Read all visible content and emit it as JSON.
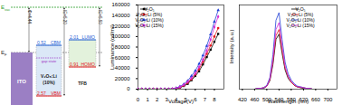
{
  "diagram": {
    "vacuum": {
      "text": "E",
      "subscript": "vac"
    },
    "fermi": {
      "text": "E",
      "subscript": "F"
    },
    "arrows": [
      "Φ=4.44",
      "IE=5.20",
      "IE=5.50"
    ],
    "layers": [
      {
        "name": [
          "ITO"
        ]
      },
      {
        "name": [
          "V₂O₅:Li",
          "(10%)"
        ],
        "levels": [
          {
            "name": "CBM",
            "value": "0.52"
          },
          {
            "name": "gap state"
          },
          {
            "name": "VBM",
            "value": "2.57"
          }
        ]
      },
      {
        "name": [
          "TFB"
        ],
        "levels": [
          {
            "name": "LUMO",
            "value": "2.01"
          },
          {
            "name": "HOMO",
            "value": "0.91"
          }
        ]
      }
    ]
  },
  "chart_data": [
    {
      "type": "line",
      "x_label": "Voltage(V)",
      "y_label": "Luminance (cd/m²)",
      "x": [
        0,
        0.4,
        0.8,
        1.2,
        1.6,
        2,
        2.4,
        2.8,
        3.2,
        3.6,
        4,
        4.4,
        4.8,
        5.2,
        5.6,
        6,
        6.4,
        6.8,
        7.2,
        7.6,
        8,
        8.4
      ],
      "xlim": [
        0,
        9
      ],
      "xticks": [
        0,
        1,
        2,
        3,
        4,
        5,
        6,
        7,
        8
      ],
      "ylim": [
        0,
        160000
      ],
      "yticks": [
        0,
        20000,
        40000,
        60000,
        80000,
        100000,
        120000,
        140000,
        160000
      ],
      "legend": "upper left",
      "series": [
        {
          "name": "V₂O₅",
          "color": "#000000",
          "marker": "square",
          "values": [
            0,
            0,
            0,
            0,
            0,
            0,
            0,
            0,
            50,
            300,
            1000,
            3000,
            6000,
            10000,
            17000,
            25000,
            34000,
            47000,
            61000,
            75000,
            90000,
            105000
          ]
        },
        {
          "name": "V₂O₅:Li (5%)",
          "color": "#e41a1c",
          "marker": "circle",
          "values": [
            0,
            0,
            0,
            0,
            0,
            0,
            0,
            0,
            60,
            400,
            1300,
            3600,
            7000,
            12000,
            19000,
            28000,
            38000,
            52000,
            67000,
            83000,
            100000,
            116000
          ]
        },
        {
          "name": "V₂O₅:Li (10%)",
          "color": "#1f3fd6",
          "marker": "triangle",
          "values": [
            0,
            0,
            0,
            0,
            0,
            0,
            0,
            0,
            80,
            600,
            2000,
            5000,
            9500,
            16000,
            25000,
            35000,
            48000,
            64000,
            82000,
            104000,
            128000,
            150000
          ]
        },
        {
          "name": "V₂O₅:Li (15%)",
          "color": "#d62ad6",
          "marker": "diamond",
          "values": [
            0,
            0,
            0,
            0,
            0,
            0,
            0,
            0,
            70,
            500,
            1600,
            4200,
            8200,
            14000,
            21000,
            30000,
            42000,
            56000,
            73000,
            94000,
            118000,
            138000
          ]
        }
      ]
    },
    {
      "type": "line",
      "x_label": "Wavelength (nm)",
      "y_label": "Intensity (a.u.)",
      "x": [
        420,
        430,
        440,
        450,
        460,
        470,
        480,
        490,
        500,
        510,
        520,
        530,
        540,
        550,
        560,
        570,
        580,
        590,
        600,
        610,
        620,
        630,
        640,
        650,
        660,
        670,
        680,
        690,
        700,
        710,
        720
      ],
      "xlim": [
        410,
        730
      ],
      "xticks": [
        420,
        460,
        500,
        540,
        580,
        620,
        660,
        700
      ],
      "ylim": [
        0,
        1.1
      ],
      "tick_labels": "x",
      "legend": "upper right",
      "series": [
        {
          "name": "V₂O₅",
          "color": "#000000",
          "values": [
            0,
            0,
            0,
            0,
            0,
            0.01,
            0.01,
            0.01,
            0.04,
            0.11,
            0.32,
            0.65,
            0.72,
            0.47,
            0.25,
            0.14,
            0.09,
            0.05,
            0.03,
            0.02,
            0.01,
            0.01,
            0.01,
            0,
            0,
            0,
            0,
            0,
            0,
            0,
            0
          ]
        },
        {
          "name": "V₂O₅:Li (5%)",
          "color": "#e41a1c",
          "values": [
            0,
            0,
            0,
            0,
            0,
            0.01,
            0.01,
            0.02,
            0.04,
            0.12,
            0.35,
            0.7,
            0.78,
            0.51,
            0.27,
            0.16,
            0.09,
            0.05,
            0.03,
            0.02,
            0.02,
            0.01,
            0.01,
            0,
            0,
            0,
            0,
            0,
            0,
            0,
            0
          ]
        },
        {
          "name": "V₂O₅:Li (10%)",
          "color": "#1f3fd6",
          "values": [
            0,
            0,
            0,
            0,
            0,
            0.01,
            0.01,
            0.02,
            0.05,
            0.15,
            0.45,
            0.9,
            1.0,
            0.65,
            0.35,
            0.2,
            0.12,
            0.07,
            0.04,
            0.03,
            0.02,
            0.01,
            0.01,
            0,
            0,
            0,
            0,
            0,
            0,
            0,
            0
          ]
        },
        {
          "name": "V₂O₅:Li (15%)",
          "color": "#d62ad6",
          "values": [
            0,
            0,
            0,
            0,
            0,
            0.01,
            0.01,
            0.02,
            0.04,
            0.13,
            0.39,
            0.78,
            0.87,
            0.57,
            0.3,
            0.17,
            0.1,
            0.06,
            0.03,
            0.03,
            0.02,
            0.01,
            0.01,
            0,
            0,
            0,
            0,
            0,
            0,
            0,
            0
          ]
        }
      ]
    }
  ]
}
